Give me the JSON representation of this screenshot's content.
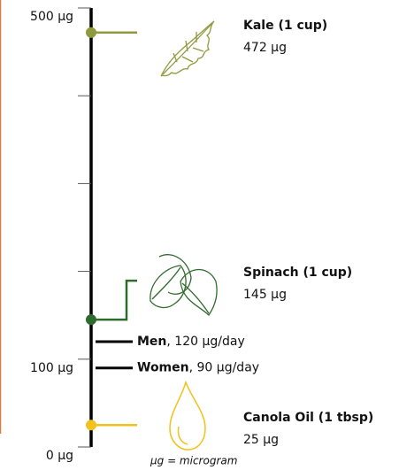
{
  "chart_data": {
    "type": "scale",
    "ylim": [
      0,
      500
    ],
    "yticks": [
      {
        "value": 0,
        "label": "0 µg"
      },
      {
        "value": 100,
        "label": "100 µg"
      },
      {
        "value": 500,
        "label": "500 µg"
      }
    ],
    "yminorticks": [
      200,
      300,
      400
    ],
    "foods": {
      "categories": [
        "Kale (1 cup)",
        "Spinach (1 cup)",
        "Canola Oil (1 tbsp)"
      ],
      "values": [
        472,
        145,
        25
      ],
      "value_labels": [
        "472 µg",
        "145 µg",
        "25 µg"
      ],
      "colors": [
        "#8e9a3b",
        "#2f6b2c",
        "#f1c21b"
      ]
    },
    "recommendations": {
      "categories": [
        "Men",
        "Women"
      ],
      "values": [
        120,
        90
      ],
      "value_labels": [
        ", 120 µg/day",
        ", 90 µg/day"
      ],
      "color": "#000000"
    },
    "note": "µg = microgram"
  }
}
